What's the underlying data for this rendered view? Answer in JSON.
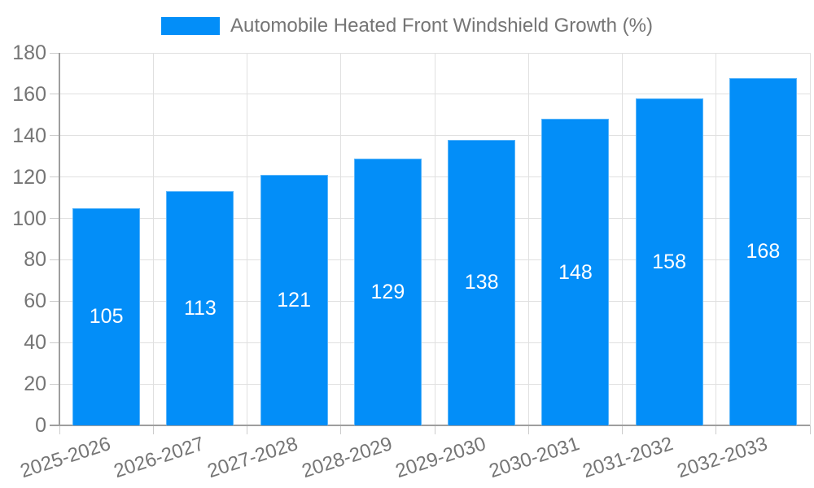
{
  "legend": {
    "label": "Automobile Heated Front Windshield Growth (%)"
  },
  "colors": {
    "bar": "#038ef8",
    "text": "#757575",
    "grid": "#e0e0e0",
    "axis": "#9e9e9e",
    "tick": "#cccccc",
    "value_label": "#ffffff",
    "background": "#ffffff"
  },
  "chart_data": {
    "type": "bar",
    "title": "Automobile Heated Front Windshield Growth (%)",
    "categories": [
      "2025-2026",
      "2026-2027",
      "2027-2028",
      "2028-2029",
      "2029-2030",
      "2030-2031",
      "2031-2032",
      "2032-2033"
    ],
    "values": [
      105,
      113,
      121,
      129,
      138,
      148,
      158,
      168
    ],
    "xlabel": "",
    "ylabel": "",
    "ylim": [
      0,
      180
    ],
    "ytick_step": 20,
    "yticks": [
      0,
      20,
      40,
      60,
      80,
      100,
      120,
      140,
      160,
      180
    ],
    "grid": true,
    "legend_position": "top-center",
    "value_label_position": "inside-center",
    "x_label_rotation_deg": -18
  }
}
